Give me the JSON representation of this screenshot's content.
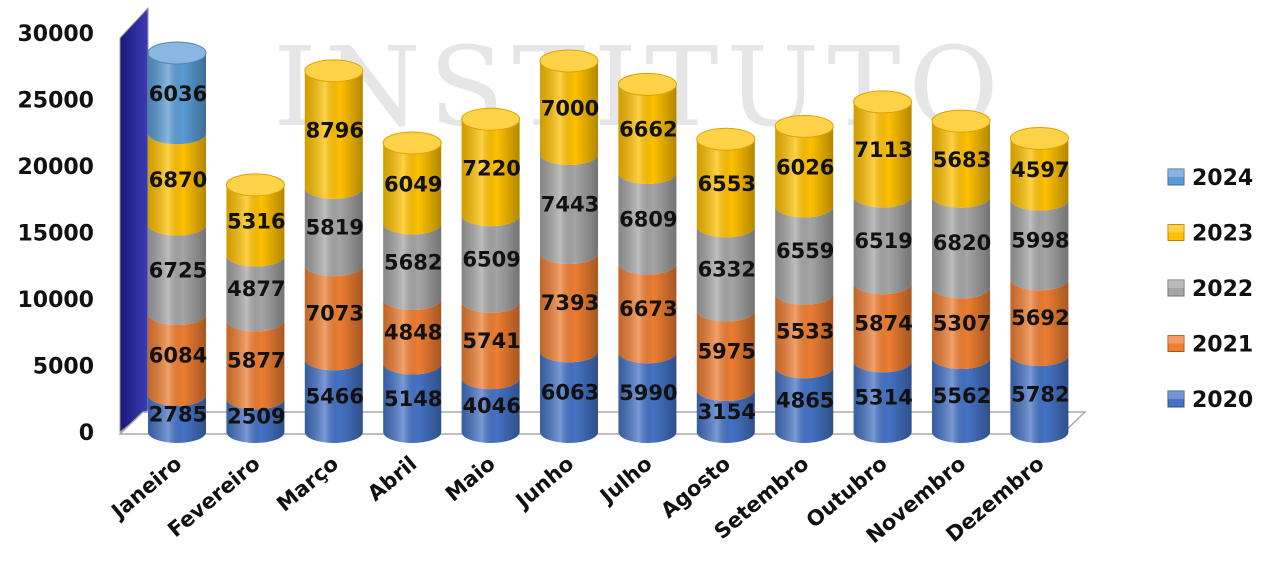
{
  "chart_data": {
    "type": "bar",
    "stacked": true,
    "style": "3d-cylinder",
    "watermark": "INSTITUTO",
    "categories": [
      "Janeiro",
      "Fevereiro",
      "Março",
      "Abril",
      "Maio",
      "Junho",
      "Julho",
      "Agosto",
      "Setembro",
      "Outubro",
      "Novembro",
      "Dezembro"
    ],
    "series": [
      {
        "name": "2020",
        "color": "#4472C4",
        "values": [
          2785,
          2509,
          5466,
          5148,
          4046,
          6063,
          5990,
          3154,
          4865,
          5314,
          5562,
          5782
        ]
      },
      {
        "name": "2021",
        "color": "#ED7D31",
        "values": [
          6084,
          5877,
          7073,
          4848,
          5741,
          7393,
          6673,
          5975,
          5533,
          5874,
          5307,
          5692
        ]
      },
      {
        "name": "2022",
        "color": "#A5A5A5",
        "values": [
          6725,
          4877,
          5819,
          5682,
          6509,
          7443,
          6809,
          6332,
          6559,
          6519,
          6820,
          5998
        ]
      },
      {
        "name": "2023",
        "color": "#FFC000",
        "values": [
          6870,
          5316,
          8796,
          6049,
          7220,
          7000,
          6662,
          6553,
          6026,
          7113,
          5683,
          4597
        ]
      },
      {
        "name": "2024",
        "color": "#5B9BD5",
        "values": [
          6036,
          null,
          null,
          null,
          null,
          null,
          null,
          null,
          null,
          null,
          null,
          null
        ]
      }
    ],
    "yticks": [
      0,
      5000,
      10000,
      15000,
      20000,
      25000,
      30000
    ],
    "ylim": [
      0,
      30000
    ],
    "legend_position": "right",
    "grid": false
  }
}
